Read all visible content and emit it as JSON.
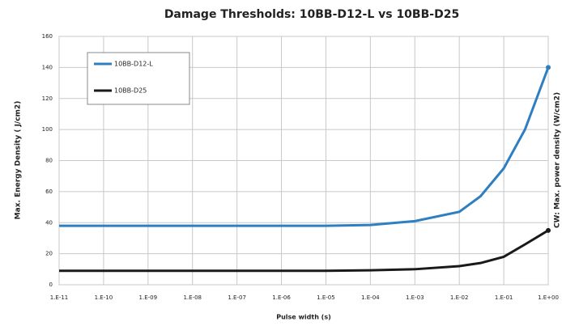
{
  "chart_data": {
    "type": "line",
    "title": "Damage Thresholds: 10BB-D12-L vs 10BB-D25",
    "xlabel": "Pulse width (s)",
    "ylabel": "Max. Energy Density ( J/cm2)",
    "y2label": "CW: Max. power density (W/cm2)",
    "xscale": "log",
    "x": [
      1e-11,
      1e-10,
      1e-09,
      1e-08,
      1e-07,
      1e-06,
      1e-05,
      0.0001,
      0.001,
      0.01,
      0.03,
      0.1,
      0.3,
      1
    ],
    "series": [
      {
        "name": "10BB-D12-L",
        "color": "#2e7fc2",
        "values": [
          38,
          38,
          38,
          38,
          38,
          38,
          38,
          38.5,
          41,
          47,
          57,
          75,
          100,
          140
        ]
      },
      {
        "name": "10BB-D25",
        "color": "#1a1a1a",
        "values": [
          9,
          9,
          9,
          9,
          9,
          9,
          9,
          9.3,
          10,
          12,
          14,
          18,
          26,
          35
        ]
      }
    ],
    "xlim": [
      1e-11,
      1
    ],
    "xticks": [
      {
        "value": 1e-11,
        "label": "1.E-11"
      },
      {
        "value": 1e-10,
        "label": "1.E-10"
      },
      {
        "value": 1e-09,
        "label": "1.E-09"
      },
      {
        "value": 1e-08,
        "label": "1.E-08"
      },
      {
        "value": 1e-07,
        "label": "1.E-07"
      },
      {
        "value": 1e-06,
        "label": "1.E-06"
      },
      {
        "value": 1e-05,
        "label": "1.E-05"
      },
      {
        "value": 0.0001,
        "label": "1.E-04"
      },
      {
        "value": 0.001,
        "label": "1.E-03"
      },
      {
        "value": 0.01,
        "label": "1.E-02"
      },
      {
        "value": 0.1,
        "label": "1.E-01"
      },
      {
        "value": 1,
        "label": "1.E+00"
      }
    ],
    "ylim": [
      0,
      160
    ],
    "yticks": [
      0,
      20,
      40,
      60,
      80,
      100,
      120,
      140,
      160
    ],
    "grid": true,
    "legend": "upper left"
  }
}
